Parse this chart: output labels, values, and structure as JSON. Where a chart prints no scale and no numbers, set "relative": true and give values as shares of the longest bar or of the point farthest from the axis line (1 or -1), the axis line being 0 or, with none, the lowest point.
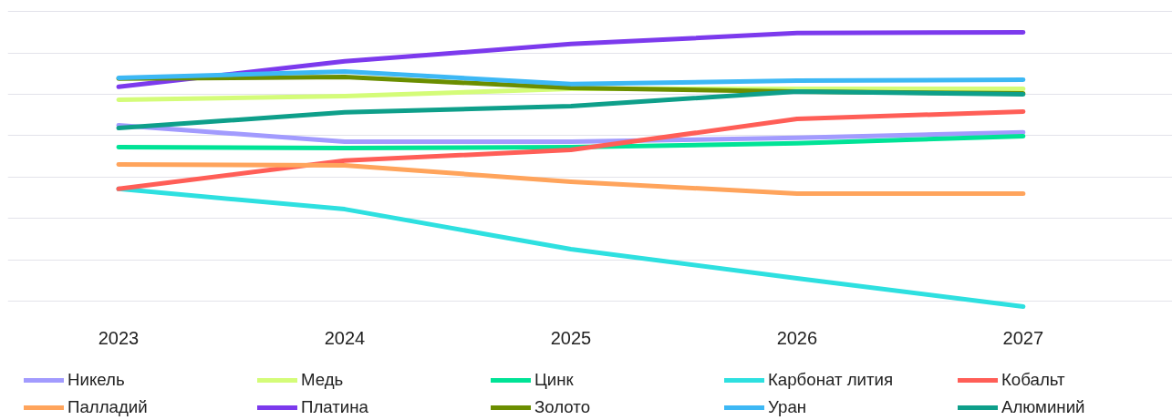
{
  "chart_data": {
    "type": "line",
    "relative": true,
    "categories": [
      "2023",
      "2024",
      "2025",
      "2026",
      "2027"
    ],
    "grid": "y",
    "legend": "bottom",
    "marker": "none",
    "line_style": "solid",
    "series": [
      {
        "name": "Никель",
        "color": "#a29bfe",
        "values": [
          0.661,
          0.601,
          0.601,
          0.615,
          0.635
        ]
      },
      {
        "name": "Медь",
        "color": "#d4fc79",
        "values": [
          0.754,
          0.767,
          0.794,
          0.794,
          0.794
        ]
      },
      {
        "name": "Цинк",
        "color": "#00e396",
        "values": [
          0.581,
          0.578,
          0.581,
          0.595,
          0.621
        ]
      },
      {
        "name": "Карбонат лития",
        "color": "#2ee0e0",
        "values": [
          0.429,
          0.355,
          0.209,
          0.103,
          0
        ]
      },
      {
        "name": "Кобальт",
        "color": "#ff5e57",
        "values": [
          0.429,
          0.532,
          0.571,
          0.684,
          0.711
        ]
      },
      {
        "name": "Палладий",
        "color": "#ffa45c",
        "values": [
          0.518,
          0.515,
          0.455,
          0.412,
          0.412
        ]
      },
      {
        "name": "Платина",
        "color": "#7c3aed",
        "values": [
          0.801,
          0.894,
          0.957,
          0.997,
          1
        ]
      },
      {
        "name": "Золото",
        "color": "#6b8e00",
        "values": [
          0.831,
          0.837,
          0.797,
          0.784,
          0.777
        ]
      },
      {
        "name": "Уран",
        "color": "#3db8f5",
        "values": [
          0.834,
          0.857,
          0.811,
          0.824,
          0.827
        ]
      },
      {
        "name": "Алюминий",
        "color": "#0e9f8a",
        "values": [
          0.651,
          0.708,
          0.731,
          0.784,
          0.774
        ]
      }
    ]
  }
}
